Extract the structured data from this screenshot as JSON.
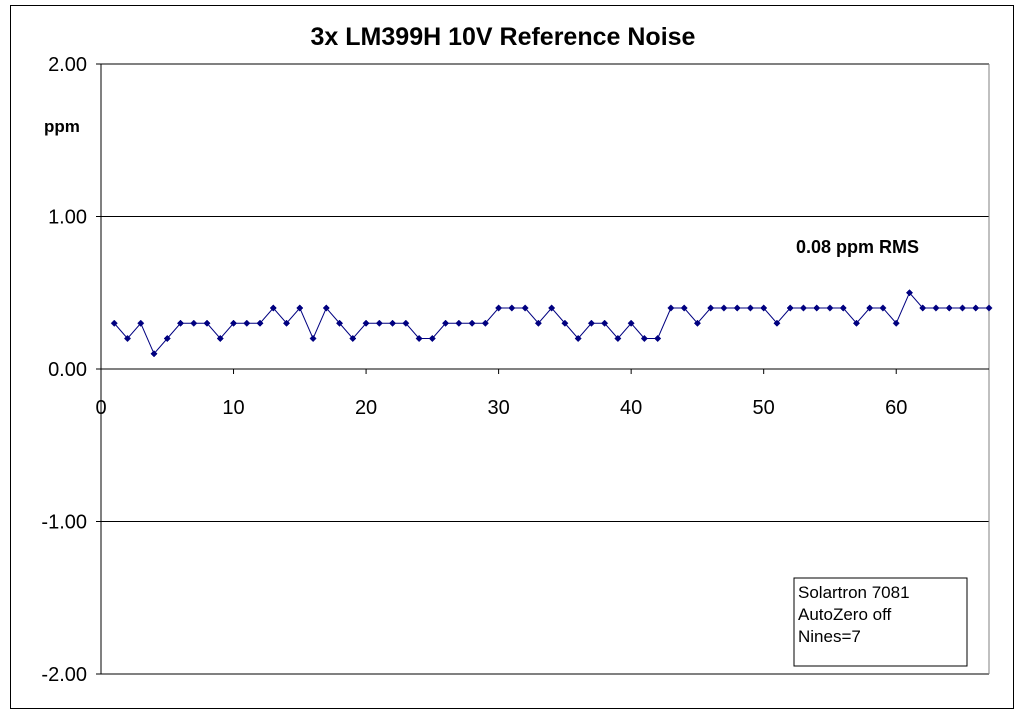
{
  "chart_data": {
    "type": "line",
    "title": "3x LM399H 10V Reference Noise",
    "xlabel": "",
    "ylabel": "ppm",
    "xlim": [
      0,
      67
    ],
    "ylim": [
      -2,
      2
    ],
    "x_ticks": [
      "0",
      "10",
      "20",
      "30",
      "40",
      "50",
      "60"
    ],
    "y_ticks": [
      "2.00",
      "1.00",
      "0.00",
      "-1.00",
      "-2.00"
    ],
    "grid": "horizontal",
    "marker": "diamond",
    "color": "#000080",
    "x": [
      1,
      2,
      3,
      4,
      5,
      6,
      7,
      8,
      9,
      10,
      11,
      12,
      13,
      14,
      15,
      16,
      17,
      18,
      19,
      20,
      21,
      22,
      23,
      24,
      25,
      26,
      27,
      28,
      29,
      30,
      31,
      32,
      33,
      34,
      35,
      36,
      37,
      38,
      39,
      40,
      41,
      42,
      43,
      44,
      45,
      46,
      47,
      48,
      49,
      50,
      51,
      52,
      53,
      54,
      55,
      56,
      57,
      58,
      59,
      60,
      61,
      62,
      63,
      64,
      65,
      66,
      67
    ],
    "values": [
      0.3,
      0.2,
      0.3,
      0.1,
      0.2,
      0.3,
      0.3,
      0.3,
      0.2,
      0.3,
      0.3,
      0.3,
      0.4,
      0.3,
      0.4,
      0.2,
      0.4,
      0.3,
      0.2,
      0.3,
      0.3,
      0.3,
      0.3,
      0.2,
      0.2,
      0.3,
      0.3,
      0.3,
      0.3,
      0.4,
      0.4,
      0.4,
      0.3,
      0.4,
      0.3,
      0.2,
      0.3,
      0.3,
      0.2,
      0.3,
      0.2,
      0.2,
      0.4,
      0.4,
      0.3,
      0.4,
      0.4,
      0.4,
      0.4,
      0.4,
      0.3,
      0.4,
      0.4,
      0.4,
      0.4,
      0.4,
      0.3,
      0.4,
      0.4,
      0.3,
      0.5,
      0.4,
      0.4,
      0.4,
      0.4,
      0.4,
      0.4
    ],
    "annotation": "0.08 ppm RMS",
    "info_box": [
      "Solartron 7081",
      "AutoZero off",
      "Nines=7"
    ]
  }
}
